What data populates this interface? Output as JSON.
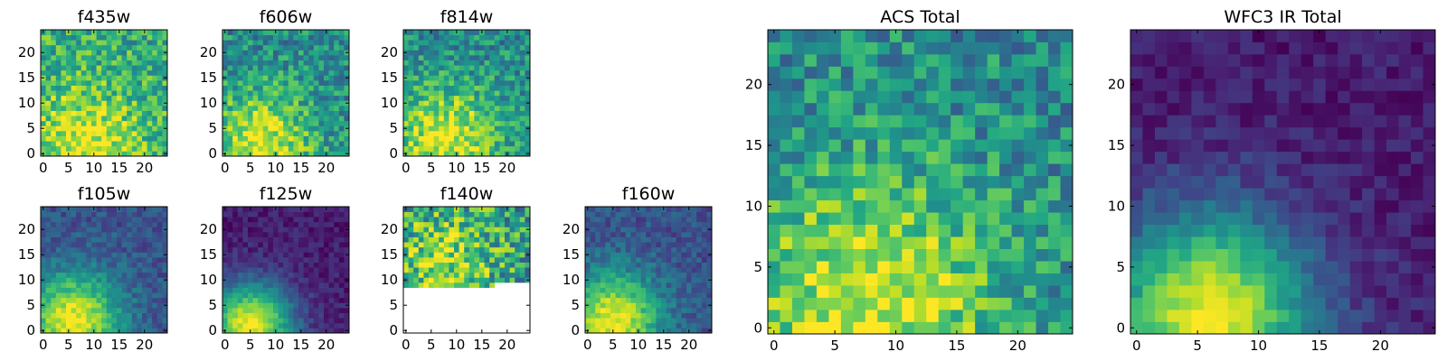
{
  "figure": {
    "description_colormap": "viridis",
    "colormap_name": "viridis"
  },
  "chart_data": [
    {
      "type": "heatmap",
      "title": "f435w",
      "grid_size": 25,
      "xticks": [
        0,
        5,
        10,
        15,
        20
      ],
      "yticks": [
        0,
        5,
        10,
        15,
        20
      ],
      "xlim": [
        0,
        25
      ],
      "ylim": [
        0,
        25
      ],
      "peak": [
        8,
        2
      ],
      "pattern": "bright-noisy"
    },
    {
      "type": "heatmap",
      "title": "f606w",
      "grid_size": 25,
      "xticks": [
        0,
        5,
        10,
        15,
        20
      ],
      "yticks": [
        0,
        5,
        10,
        15,
        20
      ],
      "xlim": [
        0,
        25
      ],
      "ylim": [
        0,
        25
      ],
      "peak": [
        7,
        2
      ],
      "pattern": "medium-noisy"
    },
    {
      "type": "heatmap",
      "title": "f814w",
      "grid_size": 25,
      "xticks": [
        0,
        5,
        10,
        15,
        20
      ],
      "yticks": [
        0,
        5,
        10,
        15,
        20
      ],
      "xlim": [
        0,
        25
      ],
      "ylim": [
        0,
        25
      ],
      "peak": [
        8,
        3
      ],
      "pattern": "medium-noisy"
    },
    {
      "type": "heatmap",
      "title": "f105w",
      "grid_size": 25,
      "xticks": [
        0,
        5,
        10,
        15,
        20
      ],
      "yticks": [
        0,
        5,
        10,
        15,
        20
      ],
      "xlim": [
        0,
        25
      ],
      "ylim": [
        0,
        25
      ],
      "peak": [
        6,
        2
      ],
      "pattern": "smooth"
    },
    {
      "type": "heatmap",
      "title": "f125w",
      "grid_size": 25,
      "xticks": [
        0,
        5,
        10,
        15,
        20
      ],
      "yticks": [
        0,
        5,
        10,
        15,
        20
      ],
      "xlim": [
        0,
        25
      ],
      "ylim": [
        0,
        25
      ],
      "peak": [
        5,
        1
      ],
      "pattern": "smooth-dark"
    },
    {
      "type": "heatmap",
      "title": "f140w",
      "grid_size": 25,
      "xticks": [
        0,
        5,
        10,
        15,
        20
      ],
      "yticks": [
        0,
        5,
        10,
        15,
        20
      ],
      "xlim": [
        0,
        25
      ],
      "ylim": [
        0,
        25
      ],
      "peak": [
        8,
        14
      ],
      "pattern": "partial-coverage",
      "masked_below_row": 9
    },
    {
      "type": "heatmap",
      "title": "f160w",
      "grid_size": 25,
      "xticks": [
        0,
        5,
        10,
        15,
        20
      ],
      "yticks": [
        0,
        5,
        10,
        15,
        20
      ],
      "xlim": [
        0,
        25
      ],
      "ylim": [
        0,
        25
      ],
      "peak": [
        5,
        2
      ],
      "pattern": "smooth"
    },
    {
      "type": "heatmap",
      "title": "ACS Total",
      "grid_size": 25,
      "xticks": [
        0,
        5,
        10,
        15,
        20
      ],
      "yticks": [
        0,
        5,
        10,
        15,
        20
      ],
      "xlim": [
        0,
        25
      ],
      "ylim": [
        0,
        25
      ],
      "peak": [
        8,
        2
      ],
      "pattern": "medium-noisy"
    },
    {
      "type": "heatmap",
      "title": "WFC3 IR Total",
      "grid_size": 25,
      "xticks": [
        0,
        5,
        10,
        15,
        20
      ],
      "yticks": [
        0,
        5,
        10,
        15,
        20
      ],
      "xlim": [
        0,
        25
      ],
      "ylim": [
        0,
        25
      ],
      "peak": [
        6,
        1
      ],
      "pattern": "smooth-dark"
    }
  ]
}
